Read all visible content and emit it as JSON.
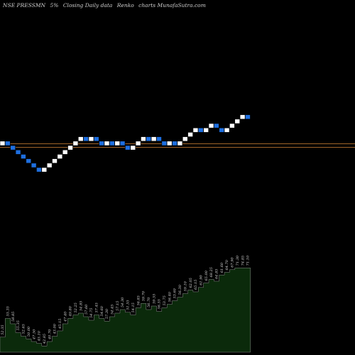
{
  "header": {
    "symbol": "NSE PRESSMN",
    "box_size": "5%",
    "chart_note": "Closing Daily data",
    "chart_kind": "Renko",
    "source": "charts MunafaSutra.com"
  },
  "colors": {
    "background": "#000000",
    "up_brick": "#ffffff",
    "down_brick": "#1e6fe0",
    "reference_line": "#b8732f",
    "volume_fill": "#0b2a0b",
    "volume_stroke": "#8a8a8a"
  },
  "chart_data": [
    {
      "type": "renko",
      "directions": [
        1,
        -1,
        -1,
        -1,
        -1,
        -1,
        -1,
        -1,
        1,
        1,
        1,
        1,
        1,
        1,
        1,
        1,
        -1,
        1,
        -1,
        -1,
        1,
        -1,
        1,
        -1,
        -1,
        1,
        1,
        1,
        -1,
        1,
        -1,
        -1,
        1,
        -1,
        1,
        1,
        1,
        1,
        -1,
        1,
        1,
        -1,
        -1,
        1,
        1,
        1,
        1,
        -1
      ],
      "start_level": 0,
      "reference_lines": [
        -0.4,
        0.4
      ]
    },
    {
      "type": "area",
      "volume_levels": [
        0.17,
        0.38,
        0.32,
        0.22,
        0.18,
        0.15,
        0.12,
        0.1,
        0.07,
        0.12,
        0.18,
        0.24,
        0.32,
        0.38,
        0.42,
        0.44,
        0.4,
        0.36,
        0.42,
        0.38,
        0.35,
        0.4,
        0.44,
        0.48,
        0.45,
        0.42,
        0.5,
        0.55,
        0.48,
        0.52,
        0.46,
        0.5,
        0.54,
        0.58,
        0.62,
        0.66,
        0.7,
        0.68,
        0.73,
        0.78,
        0.82,
        0.8,
        0.87,
        0.9,
        0.93,
        0.95,
        0.95,
        0.95
      ],
      "volume_labels": [
        "52.35",
        "55.35",
        "58.85",
        "55.35",
        "52.65",
        "50.00",
        "47.50",
        "45.10",
        "42.85",
        "40.70",
        "43.00",
        "45.15",
        "47.40",
        "49.80",
        "52.25",
        "54.85",
        "57.60",
        "54.75",
        "57.45",
        "54.60",
        "57.30",
        "54.45",
        "57.15",
        "54.30",
        "51.55",
        "54.15",
        "56.85",
        "59.70",
        "56.70",
        "59.55",
        "56.55",
        "53.75",
        "56.40",
        "53.60",
        "56.30",
        "59.10",
        "62.05",
        "65.15",
        "61.90",
        "65.00",
        "68.25",
        "64.85",
        "61.60",
        "64.70",
        "67.90",
        "71.30",
        "74.85",
        "71.10"
      ]
    }
  ]
}
